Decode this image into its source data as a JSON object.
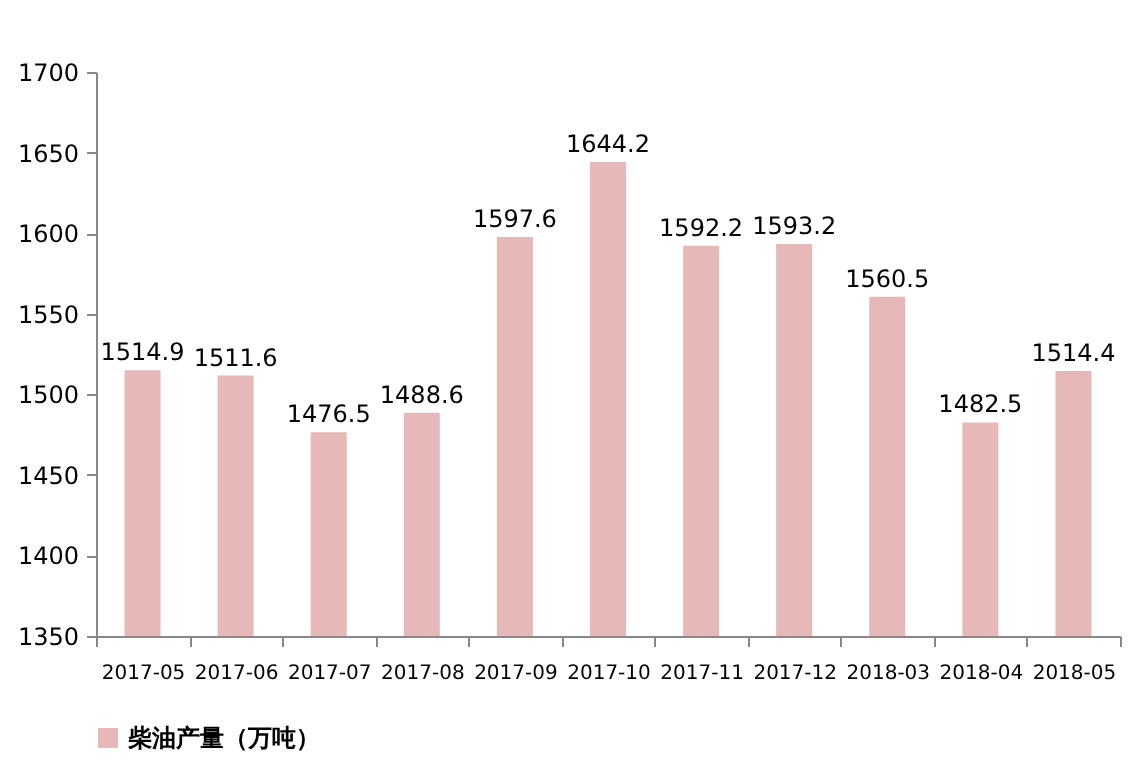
{
  "chart_data": {
    "type": "bar",
    "categories": [
      "2017-05",
      "2017-06",
      "2017-07",
      "2017-08",
      "2017-09",
      "2017-10",
      "2017-11",
      "2017-12",
      "2018-03",
      "2018-04",
      "2018-05"
    ],
    "series": [
      {
        "name": "柴油产量（万吨）",
        "color": "#e6b8b7",
        "values": [
          1514.9,
          1511.6,
          1476.5,
          1488.6,
          1597.6,
          1644.2,
          1592.2,
          1593.2,
          1560.5,
          1482.5,
          1514.4
        ]
      }
    ],
    "ylim": [
      1350,
      1700
    ],
    "yticks": [
      1350,
      1400,
      1450,
      1500,
      1550,
      1600,
      1650,
      1700
    ],
    "data_labels": true,
    "legend": "bottom left",
    "grid": false
  }
}
